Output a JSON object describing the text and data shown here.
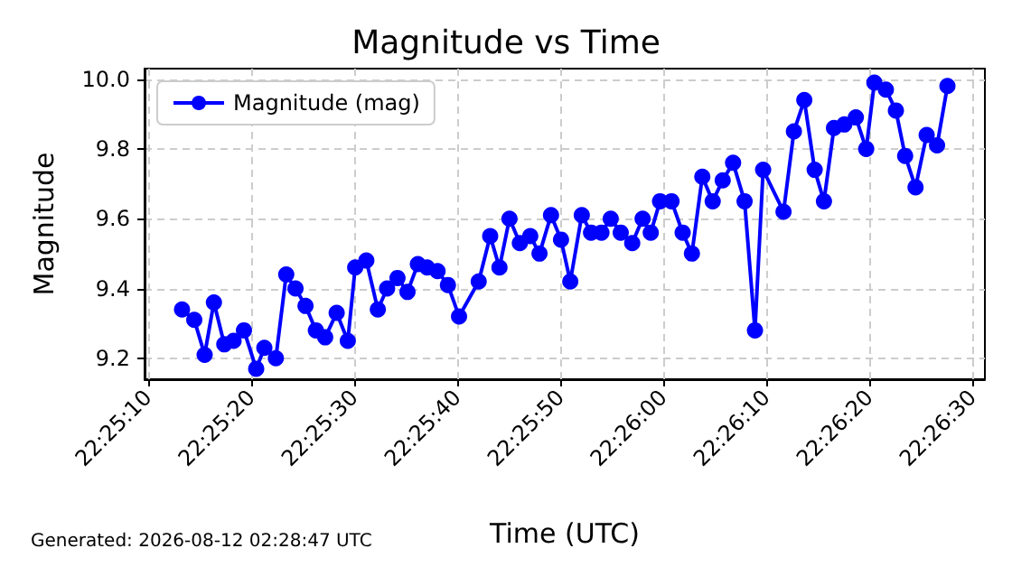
{
  "chart_data": {
    "type": "line",
    "title": "Magnitude vs Time",
    "xlabel": "Time (UTC)",
    "ylabel": "Magnitude",
    "annotations": [
      "Generated: 2026-08-12 02:28:47 UTC"
    ],
    "x": [
      22.42036,
      22.42069,
      22.42097,
      22.42122,
      22.4215,
      22.42175,
      22.42203,
      22.42236,
      22.42258,
      22.42289,
      22.42317,
      22.42342,
      22.42369,
      22.42397,
      22.42422,
      22.42453,
      22.42483,
      22.42503,
      22.42533,
      22.42564,
      22.42589,
      22.42617,
      22.42644,
      22.42672,
      22.42697,
      22.42725,
      22.42753,
      22.42783,
      22.42836,
      22.42867,
      22.42892,
      22.42919,
      22.42947,
      22.42975,
      22.43,
      22.43031,
      22.43058,
      22.43083,
      22.43114,
      22.43139,
      22.43167,
      22.43192,
      22.43219,
      22.4325,
      22.43278,
      22.433,
      22.43325,
      22.43356,
      22.43386,
      22.43411,
      22.43439,
      22.43467,
      22.43494,
      22.43522,
      22.43553,
      22.43581,
      22.43603,
      22.43658,
      22.43686,
      22.43714,
      22.43742,
      22.43767,
      22.43794,
      22.43822,
      22.43853,
      22.43881,
      22.43903,
      22.43934,
      22.43961,
      22.43986,
      22.44014,
      22.44044,
      22.44072,
      22.441
    ],
    "series": [
      {
        "name": "Magnitude (mag)",
        "color": "#0000ff",
        "values": [
          9.34,
          9.31,
          9.21,
          9.36,
          9.24,
          9.25,
          9.28,
          9.17,
          9.23,
          9.2,
          9.44,
          9.4,
          9.35,
          9.28,
          9.26,
          9.33,
          9.25,
          9.46,
          9.48,
          9.34,
          9.4,
          9.43,
          9.39,
          9.47,
          9.46,
          9.45,
          9.41,
          9.32,
          9.42,
          9.55,
          9.46,
          9.6,
          9.53,
          9.55,
          9.5,
          9.61,
          9.54,
          9.42,
          9.61,
          9.56,
          9.56,
          9.6,
          9.56,
          9.53,
          9.6,
          9.56,
          9.65,
          9.65,
          9.56,
          9.5,
          9.72,
          9.65,
          9.71,
          9.76,
          9.65,
          9.28,
          9.74,
          9.62,
          9.85,
          9.94,
          9.74,
          9.65,
          9.86,
          9.87,
          9.89,
          9.8,
          9.99,
          9.97,
          9.91,
          9.78,
          9.69,
          9.84,
          9.81,
          9.98
        ]
      }
    ],
    "xlim": [
      22.41935,
      22.44201
    ],
    "xticks": [
      {
        "value": 22.41944,
        "label": "22:25:10"
      },
      {
        "value": 22.42222,
        "label": "22:25:20"
      },
      {
        "value": 22.425,
        "label": "22:25:30"
      },
      {
        "value": 22.42778,
        "label": "22:25:40"
      },
      {
        "value": 22.43056,
        "label": "22:25:50"
      },
      {
        "value": 22.43333,
        "label": "22:26:00"
      },
      {
        "value": 22.43611,
        "label": "22:26:10"
      },
      {
        "value": 22.43889,
        "label": "22:26:20"
      },
      {
        "value": 22.44167,
        "label": "22:26:30"
      }
    ],
    "ylim": [
      9.14,
      10.03
    ],
    "yticks": [
      {
        "value": 9.2,
        "label": "9.2"
      },
      {
        "value": 9.4,
        "label": "9.4"
      },
      {
        "value": 9.6,
        "label": "9.6"
      },
      {
        "value": 9.8,
        "label": "9.8"
      },
      {
        "value": 10,
        "label": "10.0"
      }
    ],
    "grid": true,
    "legend": "top left",
    "marker": "circle",
    "line_style": "solid"
  }
}
